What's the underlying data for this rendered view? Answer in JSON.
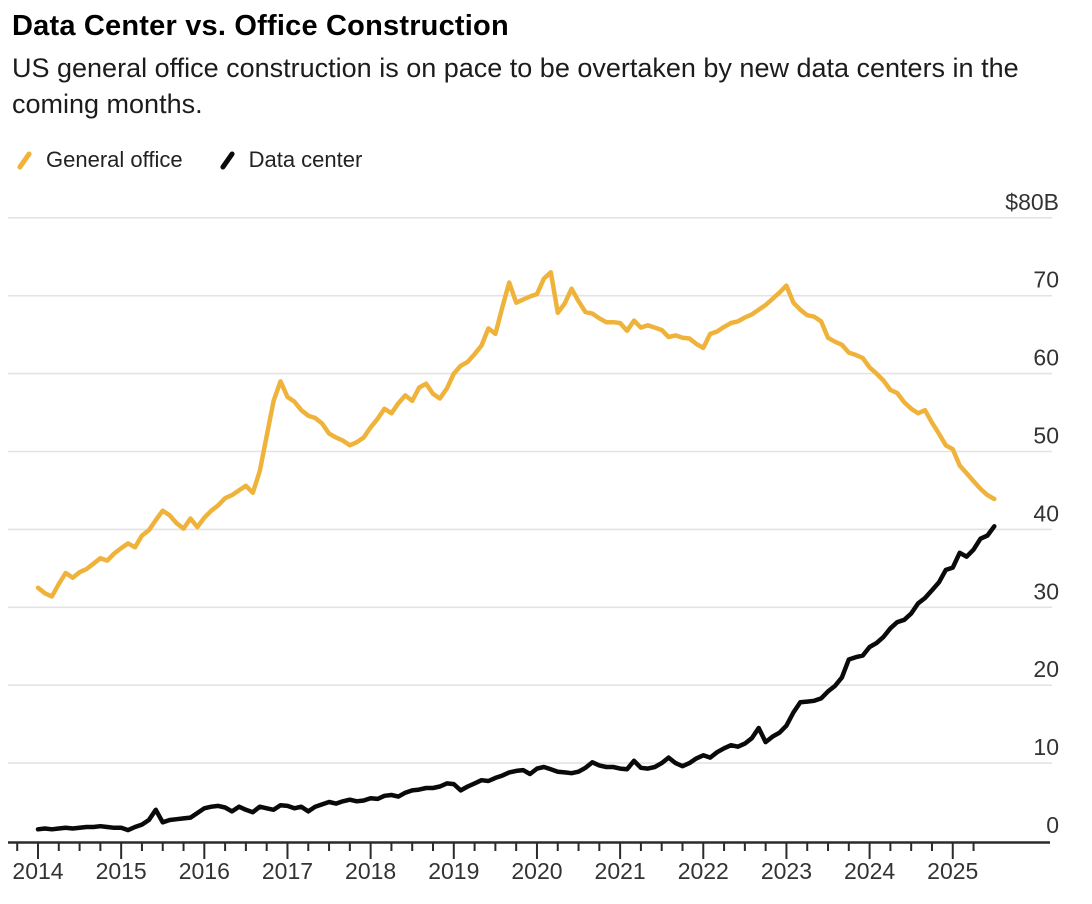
{
  "header": {
    "title": "Data Center vs. Office Construction",
    "subtitle": "US general office construction is on pace to be overtaken by new data centers in the coming months."
  },
  "legend": [
    {
      "label": "General office",
      "color": "#EFB33B"
    },
    {
      "label": "Data center",
      "color": "#0a0a0a"
    }
  ],
  "axes": {
    "y": {
      "ticks": [
        {
          "value": 80,
          "label": "$80B"
        },
        {
          "value": 70,
          "label": "70"
        },
        {
          "value": 60,
          "label": "60"
        },
        {
          "value": 50,
          "label": "50"
        },
        {
          "value": 40,
          "label": "40"
        },
        {
          "value": 30,
          "label": "30"
        },
        {
          "value": 20,
          "label": "20"
        },
        {
          "value": 10,
          "label": "10"
        },
        {
          "value": 0,
          "label": "0"
        }
      ]
    },
    "x": {
      "years": [
        "2014",
        "2015",
        "2016",
        "2017",
        "2018",
        "2019",
        "2020",
        "2021",
        "2022",
        "2023",
        "2024",
        "2025"
      ]
    }
  },
  "chart_data": {
    "type": "line",
    "title": "Data Center vs. Office Construction",
    "subtitle": "US general office construction is on pace to be overtaken by new data centers in the coming months.",
    "unit": "billions of US dollars",
    "frequency": "monthly",
    "x_start": "2014-01",
    "x_end": "2025-07",
    "ylim": [
      0,
      80
    ],
    "grid": "horizontal",
    "legend_position": "top-left",
    "y_axis_side": "right",
    "x_tick_years": [
      2014,
      2015,
      2016,
      2017,
      2018,
      2019,
      2020,
      2021,
      2022,
      2023,
      2024,
      2025
    ],
    "series": [
      {
        "name": "General office",
        "color": "#EFB33B",
        "values": [
          32.5,
          31.8,
          31.4,
          33.0,
          34.4,
          33.8,
          34.5,
          34.9,
          35.6,
          36.3,
          36.0,
          36.9,
          37.6,
          38.2,
          37.7,
          39.2,
          39.9,
          41.2,
          42.4,
          41.8,
          40.8,
          40.1,
          41.4,
          40.3,
          41.5,
          42.4,
          43.1,
          44.0,
          44.4,
          45.0,
          45.6,
          44.7,
          47.5,
          52.0,
          56.5,
          59.0,
          57.0,
          56.4,
          55.3,
          54.6,
          54.3,
          53.6,
          52.3,
          51.8,
          51.4,
          50.8,
          51.2,
          51.8,
          53.1,
          54.2,
          55.5,
          54.9,
          56.2,
          57.2,
          56.5,
          58.2,
          58.7,
          57.4,
          56.8,
          58.1,
          60.0,
          61.0,
          61.5,
          62.5,
          63.6,
          65.8,
          65.1,
          68.5,
          71.7,
          69.1,
          69.5,
          69.9,
          70.2,
          72.2,
          73.0,
          67.8,
          69.0,
          70.9,
          69.3,
          67.9,
          67.7,
          67.1,
          66.6,
          66.6,
          66.5,
          65.5,
          66.8,
          65.9,
          66.2,
          65.9,
          65.6,
          64.7,
          64.9,
          64.6,
          64.5,
          63.8,
          63.3,
          65.1,
          65.4,
          66.0,
          66.5,
          66.7,
          67.2,
          67.6,
          68.2,
          68.8,
          69.6,
          70.4,
          71.3,
          69.1,
          68.2,
          67.5,
          67.3,
          66.7,
          64.6,
          64.1,
          63.7,
          62.7,
          62.4,
          62.0,
          60.8,
          60.0,
          59.1,
          57.9,
          57.5,
          56.3,
          55.5,
          54.9,
          55.3,
          53.7,
          52.3,
          50.8,
          50.3,
          48.2,
          47.2,
          46.2,
          45.2,
          44.4,
          43.9
        ]
      },
      {
        "name": "Data center",
        "color": "#0a0a0a",
        "values": [
          1.5,
          1.6,
          1.5,
          1.6,
          1.7,
          1.6,
          1.7,
          1.8,
          1.8,
          1.9,
          1.8,
          1.7,
          1.7,
          1.4,
          1.8,
          2.1,
          2.7,
          4.0,
          2.4,
          2.7,
          2.8,
          2.9,
          3.0,
          3.6,
          4.2,
          4.4,
          4.5,
          4.3,
          3.8,
          4.4,
          4.0,
          3.7,
          4.4,
          4.2,
          4.0,
          4.6,
          4.5,
          4.2,
          4.4,
          3.8,
          4.4,
          4.7,
          5.0,
          4.8,
          5.1,
          5.3,
          5.1,
          5.2,
          5.5,
          5.4,
          5.8,
          5.9,
          5.7,
          6.2,
          6.5,
          6.6,
          6.8,
          6.8,
          7.0,
          7.4,
          7.3,
          6.5,
          7.0,
          7.4,
          7.8,
          7.7,
          8.1,
          8.4,
          8.8,
          9.0,
          9.1,
          8.6,
          9.3,
          9.5,
          9.2,
          8.9,
          8.8,
          8.7,
          8.9,
          9.4,
          10.1,
          9.7,
          9.5,
          9.5,
          9.3,
          9.2,
          10.3,
          9.4,
          9.3,
          9.5,
          10.0,
          10.7,
          10.0,
          9.6,
          10.0,
          10.6,
          11.0,
          10.7,
          11.4,
          11.9,
          12.3,
          12.1,
          12.5,
          13.2,
          14.5,
          12.7,
          13.4,
          13.9,
          14.8,
          16.5,
          17.8,
          17.9,
          18.0,
          18.3,
          19.2,
          19.9,
          21.0,
          23.3,
          23.6,
          23.8,
          24.9,
          25.4,
          26.2,
          27.3,
          28.1,
          28.4,
          29.2,
          30.5,
          31.2,
          32.2,
          33.2,
          34.8,
          35.1,
          37.0,
          36.5,
          37.4,
          38.8,
          39.2,
          40.4
        ]
      }
    ]
  },
  "style": {
    "gridline_color": "#e3e3e3",
    "axis_color": "#2b2b2b",
    "tick_label_color": "#333333"
  }
}
